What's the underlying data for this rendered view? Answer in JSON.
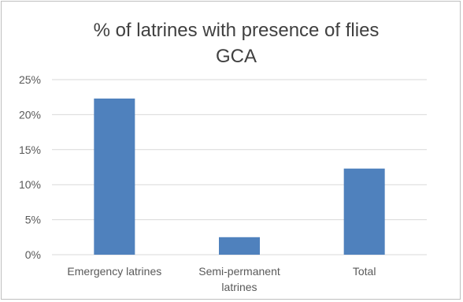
{
  "chart_data": {
    "type": "bar",
    "title_line1": "% of latrines with presence  of flies",
    "title_line2": "GCA",
    "categories": [
      [
        "Emergency latrines"
      ],
      [
        "Semi-permanent",
        "latrines"
      ],
      [
        "Total"
      ]
    ],
    "values": [
      0.223,
      0.025,
      0.123
    ],
    "ylim": [
      0,
      0.25
    ],
    "yticks": [
      0,
      0.05,
      0.1,
      0.15,
      0.2,
      0.25
    ],
    "ytick_labels": [
      "0%",
      "5%",
      "10%",
      "15%",
      "20%",
      "25%"
    ],
    "grid": true,
    "legend": "none",
    "xlabel": "",
    "ylabel": "",
    "bar_color": "#4f81bd",
    "gridline_color": "#d9d9d9"
  }
}
